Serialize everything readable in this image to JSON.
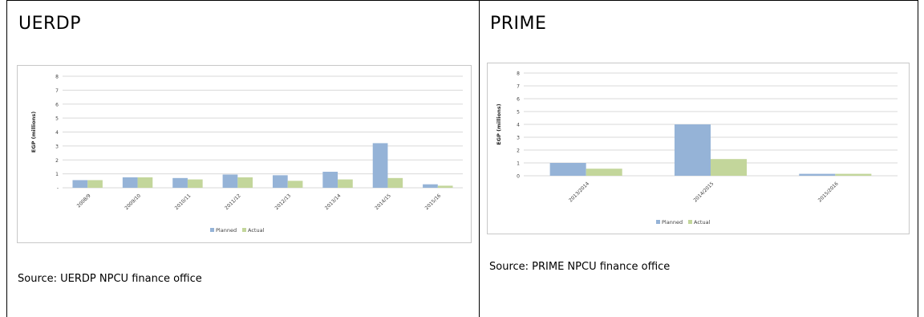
{
  "panels": [
    {
      "title": "UERDP",
      "source": "Source:  UERDP NPCU finance office",
      "chart_data": {
        "type": "bar",
        "categories": [
          "2008/9",
          "2009/10",
          "2010/11",
          "2011/12",
          "2012/13",
          "2013/14",
          "2014/15",
          "2015/16"
        ],
        "series": [
          {
            "name": "Planned",
            "values": [
              0.55,
              0.75,
              0.7,
              0.95,
              0.9,
              1.15,
              3.2,
              0.25
            ]
          },
          {
            "name": "Actual",
            "values": [
              0.55,
              0.75,
              0.6,
              0.75,
              0.5,
              0.6,
              0.7,
              0.15
            ]
          }
        ],
        "ylabel": "EGP (millions)",
        "ylim": [
          0,
          8
        ],
        "yticks": [
          "-",
          "1",
          "2",
          "3",
          "4",
          "5",
          "6",
          "7",
          "8"
        ],
        "grid": true,
        "legend": "bottom",
        "colors": {
          "Planned": "#95b3d7",
          "Actual": "#c3d69b"
        }
      }
    },
    {
      "title": "PRIME",
      "source": "Source:  PRIME NPCU finance office",
      "chart_data": {
        "type": "bar",
        "categories": [
          "2013/2014",
          "2014/2015",
          "2015/2016"
        ],
        "series": [
          {
            "name": "Planned",
            "values": [
              1.0,
              4.0,
              0.15
            ]
          },
          {
            "name": "Actual",
            "values": [
              0.55,
              1.3,
              0.15
            ]
          }
        ],
        "ylabel": "EGP (millions)",
        "ylim": [
          0,
          8
        ],
        "yticks": [
          "0",
          "1",
          "2",
          "3",
          "4",
          "5",
          "6",
          "7",
          "8"
        ],
        "grid": true,
        "legend": "bottom",
        "colors": {
          "Planned": "#95b3d7",
          "Actual": "#c3d69b"
        }
      }
    }
  ]
}
